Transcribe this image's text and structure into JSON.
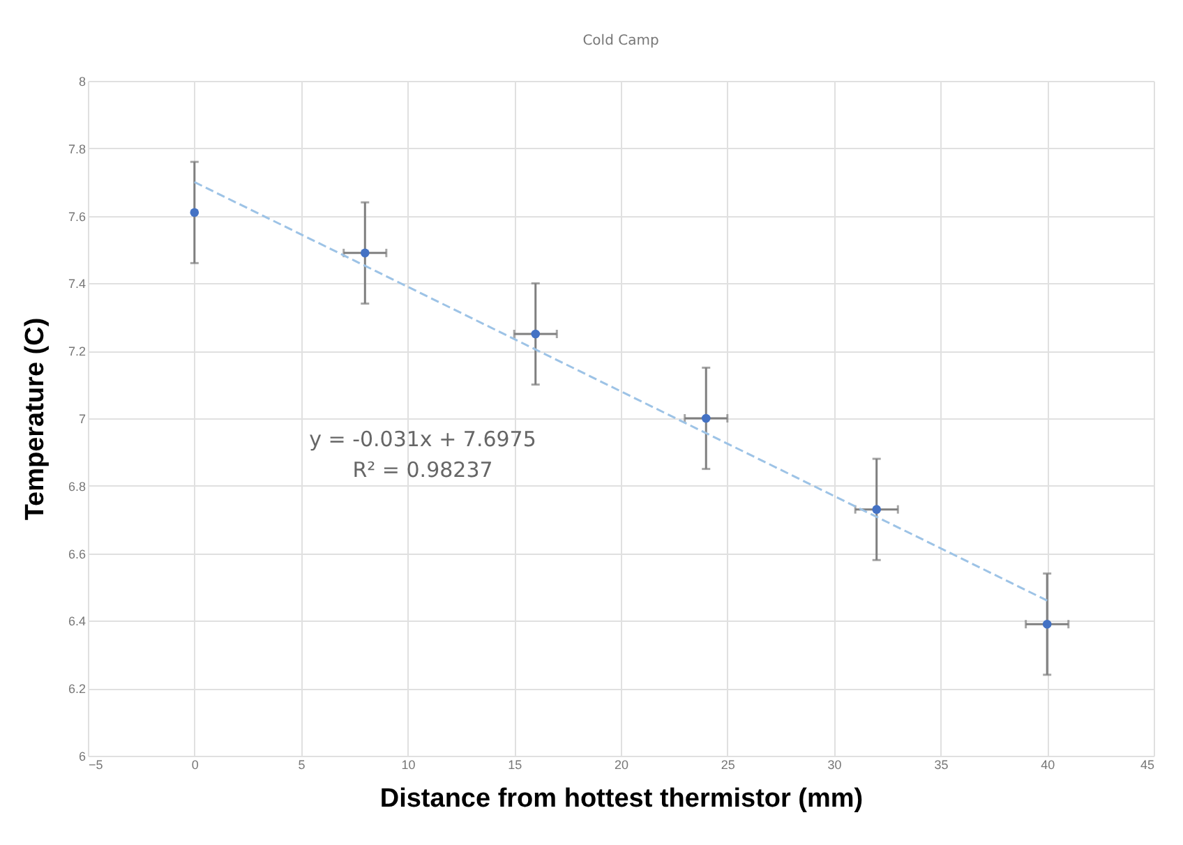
{
  "chart_data": {
    "type": "scatter",
    "title": "Cold Camp",
    "xlabel": "Distance from hottest thermistor (mm)",
    "ylabel": "Temperature (C)",
    "x": [
      0,
      8,
      16,
      24,
      32,
      40
    ],
    "series": [
      {
        "color": "#4472c4",
        "values": [
          7.61,
          7.49,
          7.25,
          7.0,
          6.73,
          6.39
        ],
        "errors": [
          0.15,
          0.15,
          0.15,
          0.15,
          0.15,
          0.15
        ],
        "xerrors": [
          null,
          1,
          1,
          1,
          1,
          1
        ]
      },
      {
        "type": "line",
        "color": "#9dc3e6",
        "x": [
          0,
          40
        ],
        "values": [
          7.7,
          6.46
        ],
        "line_style": "dashed",
        "marker": "none"
      }
    ],
    "annotations": [
      "y = -0.031x + 7.6975",
      "R² = 0.98237"
    ],
    "xlim": [
      -5,
      45
    ],
    "xticks": [
      -5,
      0,
      5,
      10,
      15,
      20,
      25,
      30,
      35,
      40,
      45
    ],
    "ylim": [
      6,
      8
    ],
    "yticks": [
      6,
      6.2,
      6.4,
      6.6,
      6.8,
      7,
      7.2,
      7.4,
      7.6,
      7.8,
      8
    ],
    "grid": true,
    "marker": "circle"
  }
}
